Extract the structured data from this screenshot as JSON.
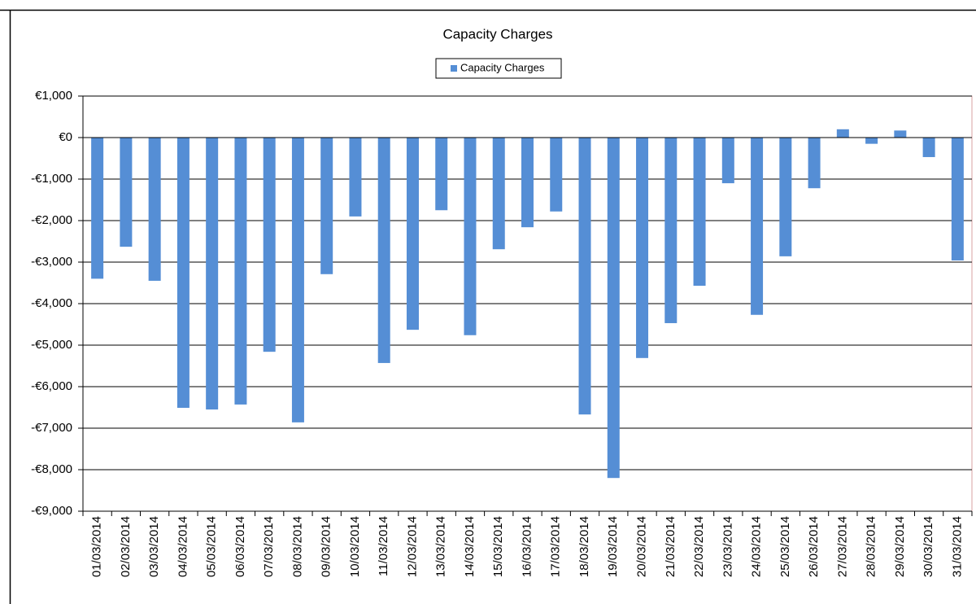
{
  "chart_data": {
    "type": "bar",
    "title": "Capacity Charges",
    "categories": [
      "01/03/2014",
      "02/03/2014",
      "03/03/2014",
      "04/03/2014",
      "05/03/2014",
      "06/03/2014",
      "07/03/2014",
      "08/03/2014",
      "09/03/2014",
      "10/03/2014",
      "11/03/2014",
      "12/03/2014",
      "13/03/2014",
      "14/03/2014",
      "15/03/2014",
      "16/03/2014",
      "17/03/2014",
      "18/03/2014",
      "19/03/2014",
      "20/03/2014",
      "21/03/2014",
      "22/03/2014",
      "23/03/2014",
      "24/03/2014",
      "25/03/2014",
      "26/03/2014",
      "27/03/2014",
      "28/03/2014",
      "29/03/2014",
      "30/03/2014",
      "31/03/2014"
    ],
    "series": [
      {
        "name": "Capacity Charges",
        "color": "#558ed5",
        "values": [
          -3400,
          -2630,
          -3450,
          -6510,
          -6550,
          -6430,
          -5160,
          -6860,
          -3290,
          -1900,
          -5430,
          -4630,
          -1750,
          -4760,
          -2690,
          -2160,
          -1780,
          -6670,
          -8200,
          -5310,
          -4470,
          -3570,
          -1100,
          -4270,
          -2860,
          -1220,
          200,
          -150,
          170,
          -470,
          -2960
        ]
      }
    ],
    "ylim": [
      -9000,
      1000
    ],
    "yticks": [
      {
        "value": -9000,
        "label": "-€9,000"
      },
      {
        "value": -8000,
        "label": "-€8,000"
      },
      {
        "value": -7000,
        "label": "-€7,000"
      },
      {
        "value": -6000,
        "label": "-€6,000"
      },
      {
        "value": -5000,
        "label": "-€5,000"
      },
      {
        "value": -4000,
        "label": "-€4,000"
      },
      {
        "value": -3000,
        "label": "-€3,000"
      },
      {
        "value": -2000,
        "label": "-€2,000"
      },
      {
        "value": -1000,
        "label": "-€1,000"
      },
      {
        "value": 0,
        "label": "€0"
      },
      {
        "value": 1000,
        "label": "€1,000"
      }
    ],
    "grid": true,
    "legend": "top"
  }
}
